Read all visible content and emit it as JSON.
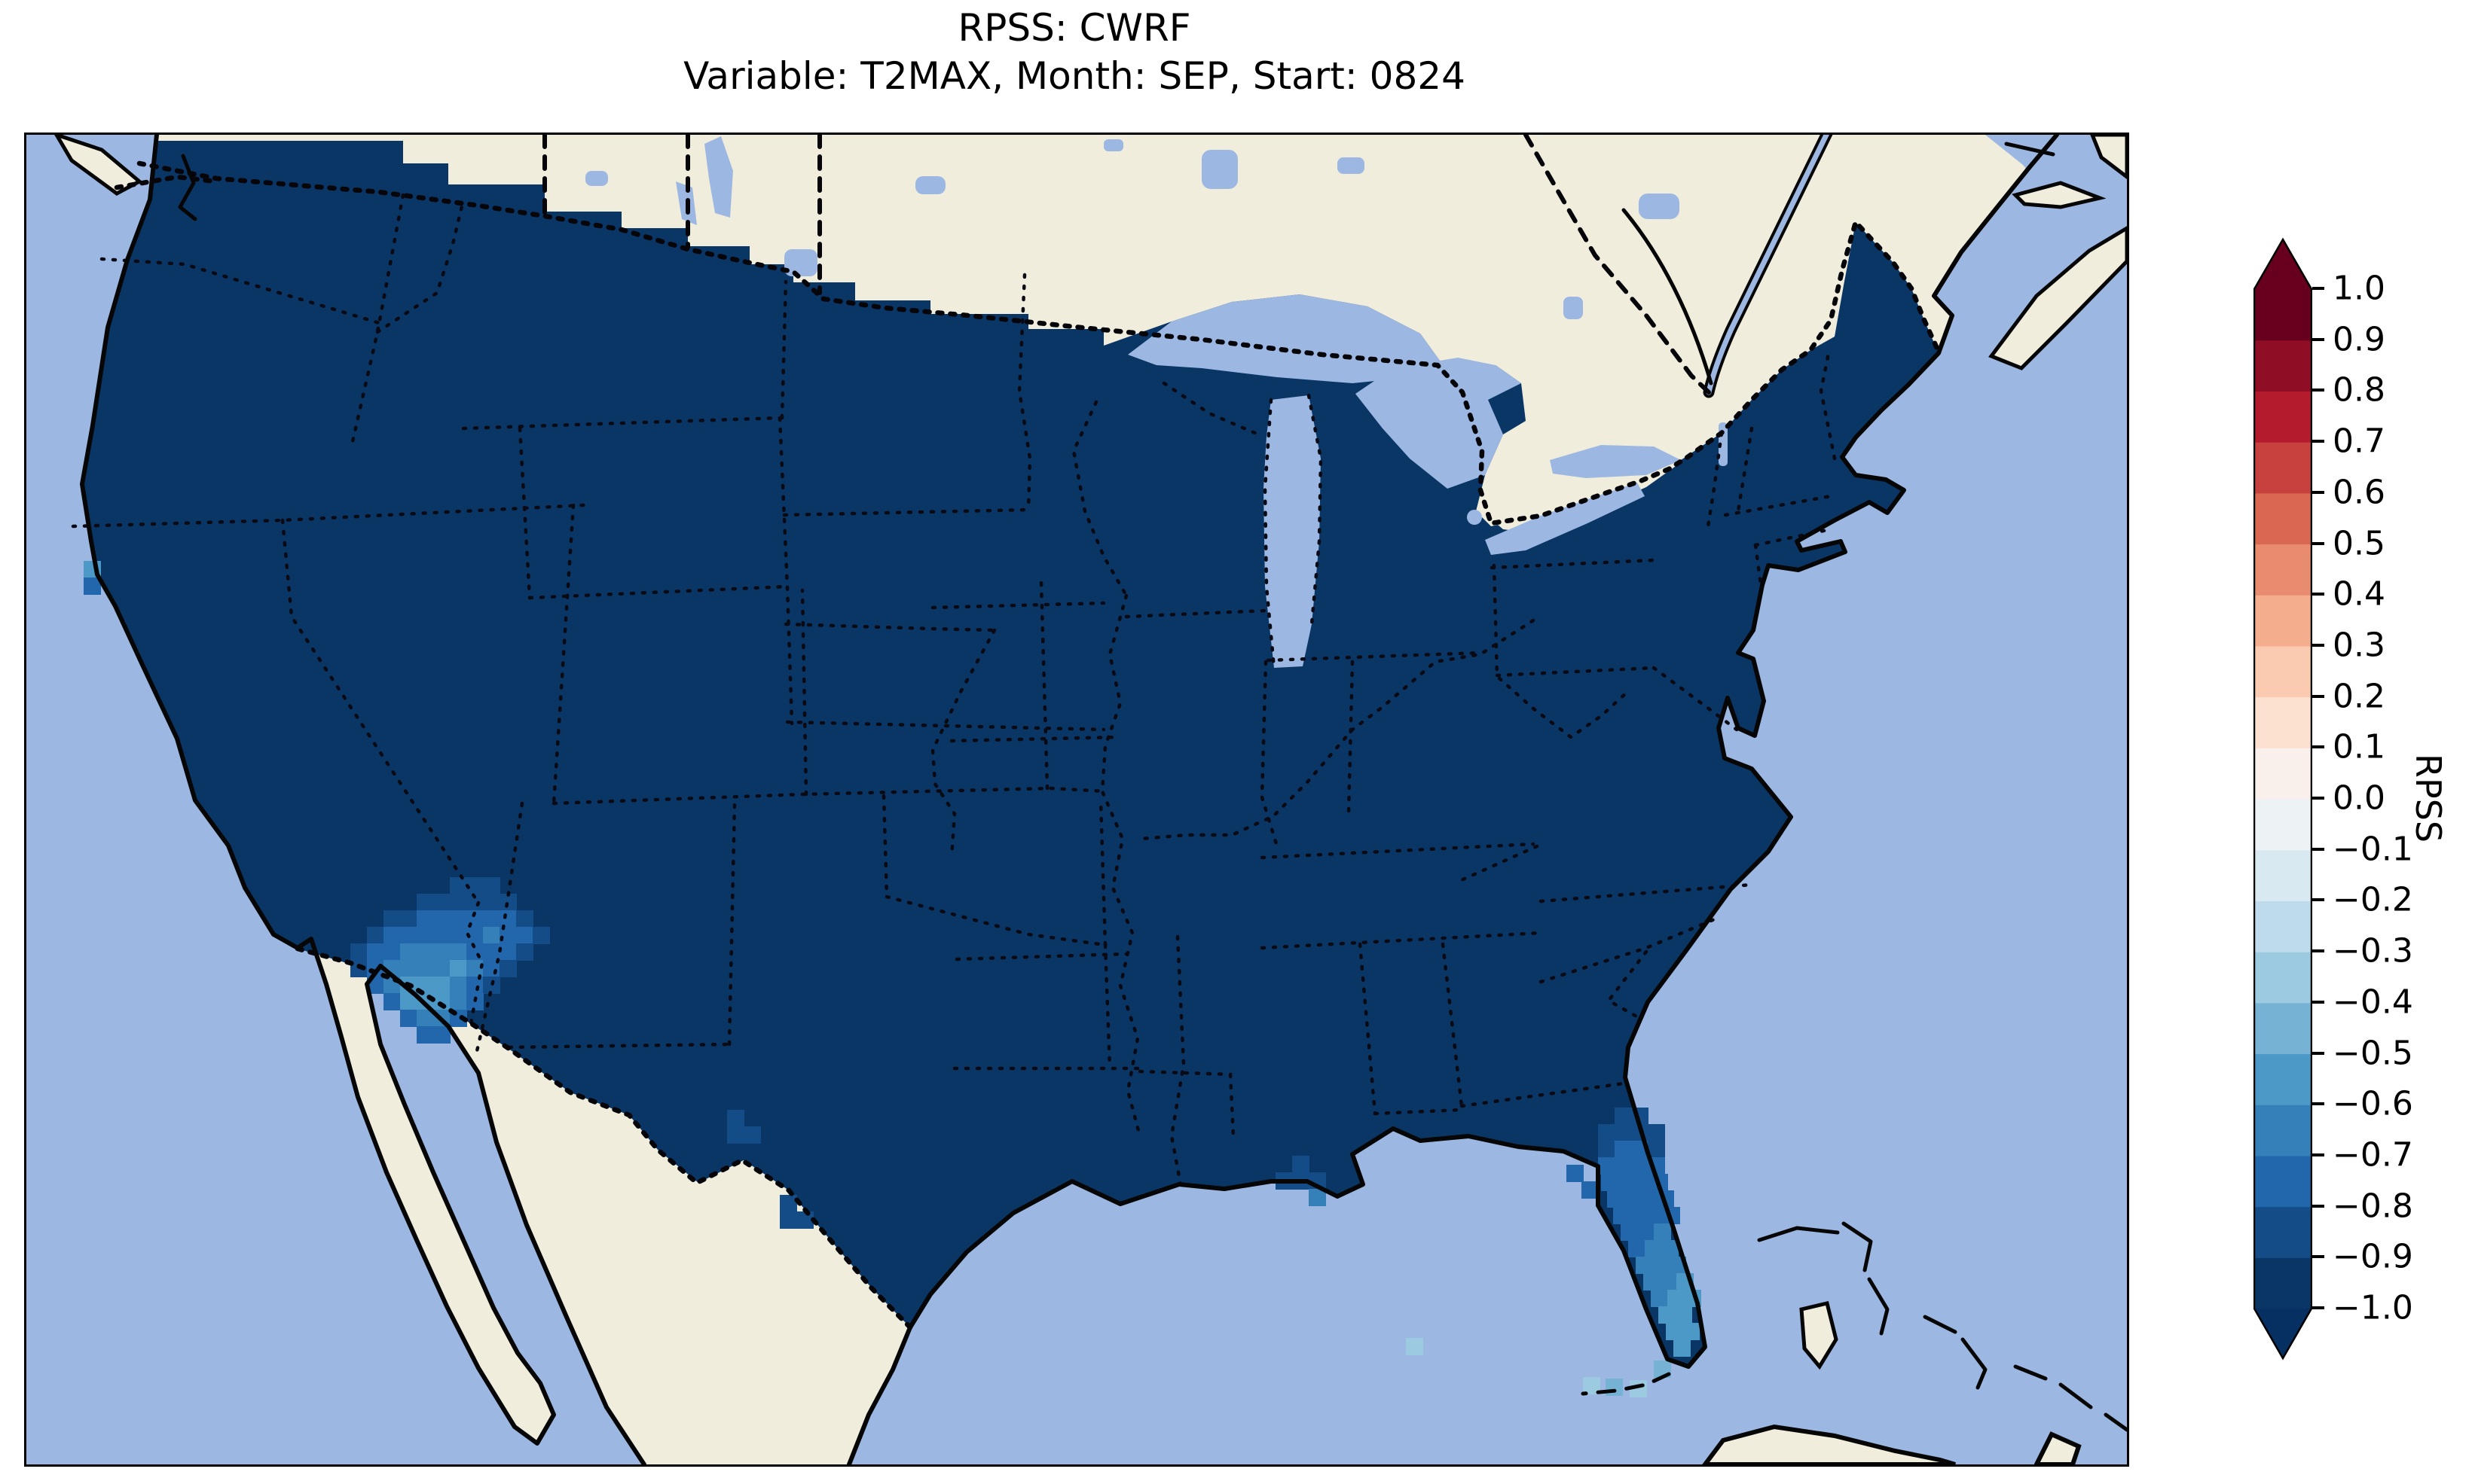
{
  "title": {
    "line1": "RPSS: CWRF",
    "line2": "Variable: T2MAX, Month: SEP, Start: 0824"
  },
  "colorbar": {
    "label": "RPSS",
    "ticks": [
      "1.0",
      "0.9",
      "0.8",
      "0.7",
      "0.6",
      "0.5",
      "0.4",
      "0.3",
      "0.2",
      "0.1",
      "0.0",
      "−0.1",
      "−0.2",
      "−0.3",
      "−0.4",
      "−0.5",
      "−0.6",
      "−0.7",
      "−0.8",
      "−0.9",
      "−1.0"
    ],
    "bin_colors_bottom_to_top": [
      "#0a3666",
      "#144c88",
      "#2267ac",
      "#3580b9",
      "#4c98c6",
      "#75b2d4",
      "#9ccae1",
      "#bddbea",
      "#d9e9f1",
      "#edf2f5",
      "#f9f0eb",
      "#fce1d1",
      "#facab1",
      "#f5ae8d",
      "#e98b6e",
      "#d96853",
      "#c7423f",
      "#b41c2d",
      "#8f0d25",
      "#67001f"
    ],
    "under_arrow_color": "#053061",
    "over_arrow_color": "#67001f"
  },
  "map": {
    "ocean_color": "#9cb8e2",
    "land_color": "#f0eddc",
    "data_fill_color": "#0a3666",
    "palette": {
      "2": "#144c88",
      "3": "#2267ac",
      "4": "#3580b9",
      "5": "#4c98c6",
      "6": "#75b2d4",
      "7": "#9ccae1"
    },
    "cells": [
      [
        562,
        986,
        2
      ],
      [
        584,
        986,
        2
      ],
      [
        606,
        986,
        2
      ],
      [
        518,
        1008,
        2
      ],
      [
        540,
        1008,
        2
      ],
      [
        562,
        1008,
        2
      ],
      [
        584,
        1008,
        2
      ],
      [
        606,
        1008,
        2
      ],
      [
        628,
        1008,
        2
      ],
      [
        474,
        1030,
        2
      ],
      [
        496,
        1030,
        2
      ],
      [
        518,
        1030,
        3
      ],
      [
        540,
        1030,
        3
      ],
      [
        562,
        1030,
        3
      ],
      [
        584,
        1030,
        3
      ],
      [
        606,
        1030,
        3
      ],
      [
        628,
        1030,
        3
      ],
      [
        650,
        1030,
        2
      ],
      [
        452,
        1052,
        2
      ],
      [
        474,
        1052,
        3
      ],
      [
        496,
        1052,
        3
      ],
      [
        518,
        1052,
        3
      ],
      [
        540,
        1052,
        3
      ],
      [
        562,
        1052,
        3
      ],
      [
        584,
        1052,
        3
      ],
      [
        606,
        1052,
        4
      ],
      [
        628,
        1052,
        3
      ],
      [
        650,
        1052,
        3
      ],
      [
        672,
        1052,
        2
      ],
      [
        430,
        1074,
        2
      ],
      [
        452,
        1074,
        3
      ],
      [
        474,
        1074,
        3
      ],
      [
        496,
        1074,
        4
      ],
      [
        518,
        1074,
        4
      ],
      [
        540,
        1074,
        4
      ],
      [
        562,
        1074,
        4
      ],
      [
        584,
        1074,
        3
      ],
      [
        606,
        1074,
        3
      ],
      [
        628,
        1074,
        3
      ],
      [
        650,
        1074,
        2
      ],
      [
        430,
        1096,
        2
      ],
      [
        452,
        1096,
        3
      ],
      [
        474,
        1096,
        4
      ],
      [
        496,
        1096,
        4
      ],
      [
        518,
        1096,
        4
      ],
      [
        540,
        1096,
        4
      ],
      [
        562,
        1096,
        5
      ],
      [
        584,
        1096,
        4
      ],
      [
        606,
        1096,
        3
      ],
      [
        628,
        1096,
        2
      ],
      [
        452,
        1118,
        3
      ],
      [
        474,
        1118,
        4
      ],
      [
        496,
        1118,
        5
      ],
      [
        518,
        1118,
        5
      ],
      [
        540,
        1118,
        5
      ],
      [
        562,
        1118,
        4
      ],
      [
        584,
        1118,
        3
      ],
      [
        606,
        1118,
        2
      ],
      [
        474,
        1140,
        3
      ],
      [
        496,
        1140,
        5
      ],
      [
        518,
        1140,
        5
      ],
      [
        540,
        1140,
        5
      ],
      [
        562,
        1140,
        4
      ],
      [
        584,
        1140,
        3
      ],
      [
        496,
        1162,
        3
      ],
      [
        518,
        1162,
        4
      ],
      [
        540,
        1162,
        4
      ],
      [
        562,
        1162,
        3
      ],
      [
        518,
        1184,
        3
      ],
      [
        540,
        1184,
        3
      ],
      [
        2108,
        1292,
        2
      ],
      [
        2130,
        1292,
        2
      ],
      [
        2086,
        1314,
        2
      ],
      [
        2108,
        1314,
        2
      ],
      [
        2130,
        1314,
        2
      ],
      [
        2152,
        1314,
        2
      ],
      [
        2086,
        1336,
        2
      ],
      [
        2108,
        1336,
        3
      ],
      [
        2130,
        1336,
        3
      ],
      [
        2152,
        1336,
        2
      ],
      [
        2086,
        1358,
        3
      ],
      [
        2108,
        1358,
        3
      ],
      [
        2130,
        1358,
        3
      ],
      [
        2152,
        1358,
        3
      ],
      [
        2090,
        1380,
        3
      ],
      [
        2112,
        1380,
        3
      ],
      [
        2134,
        1380,
        3
      ],
      [
        2156,
        1380,
        3
      ],
      [
        2098,
        1402,
        3
      ],
      [
        2120,
        1402,
        3
      ],
      [
        2142,
        1402,
        3
      ],
      [
        2164,
        1402,
        3
      ],
      [
        2106,
        1424,
        3
      ],
      [
        2128,
        1424,
        3
      ],
      [
        2150,
        1424,
        3
      ],
      [
        2172,
        1424,
        3
      ],
      [
        2116,
        1446,
        3
      ],
      [
        2138,
        1446,
        3
      ],
      [
        2160,
        1446,
        4
      ],
      [
        2126,
        1468,
        3
      ],
      [
        2148,
        1468,
        4
      ],
      [
        2170,
        1468,
        4
      ],
      [
        2136,
        1490,
        4
      ],
      [
        2158,
        1490,
        4
      ],
      [
        2180,
        1490,
        4
      ],
      [
        2146,
        1512,
        4
      ],
      [
        2168,
        1512,
        4
      ],
      [
        2190,
        1512,
        5
      ],
      [
        2156,
        1534,
        4
      ],
      [
        2178,
        1534,
        5
      ],
      [
        2200,
        1534,
        5
      ],
      [
        2166,
        1556,
        5
      ],
      [
        2188,
        1556,
        5
      ],
      [
        2176,
        1578,
        5
      ],
      [
        2198,
        1578,
        5
      ],
      [
        2186,
        1600,
        5
      ],
      [
        2066,
        1650,
        7
      ],
      [
        2096,
        1652,
        6
      ],
      [
        2128,
        1654,
        7
      ],
      [
        2160,
        1628,
        6
      ],
      [
        930,
        1295,
        2
      ],
      [
        930,
        1317,
        2
      ],
      [
        952,
        1317,
        2
      ],
      [
        1000,
        1408,
        2
      ],
      [
        1000,
        1430,
        2
      ],
      [
        1022,
        1430,
        2
      ],
      [
        1658,
        1378,
        2
      ],
      [
        1680,
        1356,
        2
      ],
      [
        1680,
        1378,
        2
      ],
      [
        1702,
        1378,
        2
      ],
      [
        1702,
        1400,
        4
      ],
      [
        2044,
        1368,
        3
      ],
      [
        2064,
        1390,
        3
      ],
      [
        76,
        566,
        5
      ],
      [
        76,
        588,
        3
      ],
      [
        1831,
        1598,
        7
      ]
    ]
  },
  "chart_data": {
    "type": "heatmap",
    "title": "RPSS: CWRF",
    "subtitle": "Variable: T2MAX, Month: SEP, Start: 0824",
    "colorbar_label": "RPSS",
    "colormap": "RdBu_r, 20 discrete 0.1-wide bins with over/under arrows",
    "value_range": [
      -1.0,
      1.0
    ],
    "tick_step": 0.1,
    "legend_position": "right",
    "regions": [
      {
        "area": "Vast majority of CONUS data domain",
        "rpss": -1.0,
        "note": "bottom bin, <= -0.9, darkest blue"
      },
      {
        "area": "Arizona / New Mexico border cluster down to Mexico border",
        "rpss_range": [
          -0.8,
          -0.5
        ]
      },
      {
        "area": "Central and South Florida peninsula, lightest at the tip",
        "rpss_range": [
          -0.8,
          -0.4
        ]
      },
      {
        "area": "Rio Grande / South Texas border cells",
        "rpss_range": [
          -0.9,
          -0.8
        ]
      },
      {
        "area": "Louisiana delta cells",
        "rpss_range": [
          -0.9,
          -0.6
        ]
      },
      {
        "area": "Scattered Florida Keys cells",
        "rpss_range": [
          -0.4,
          -0.2
        ]
      },
      {
        "area": "Great Lakes, oceans, Canada, Mexico",
        "rpss": null,
        "note": "masked / outside domain"
      }
    ]
  }
}
